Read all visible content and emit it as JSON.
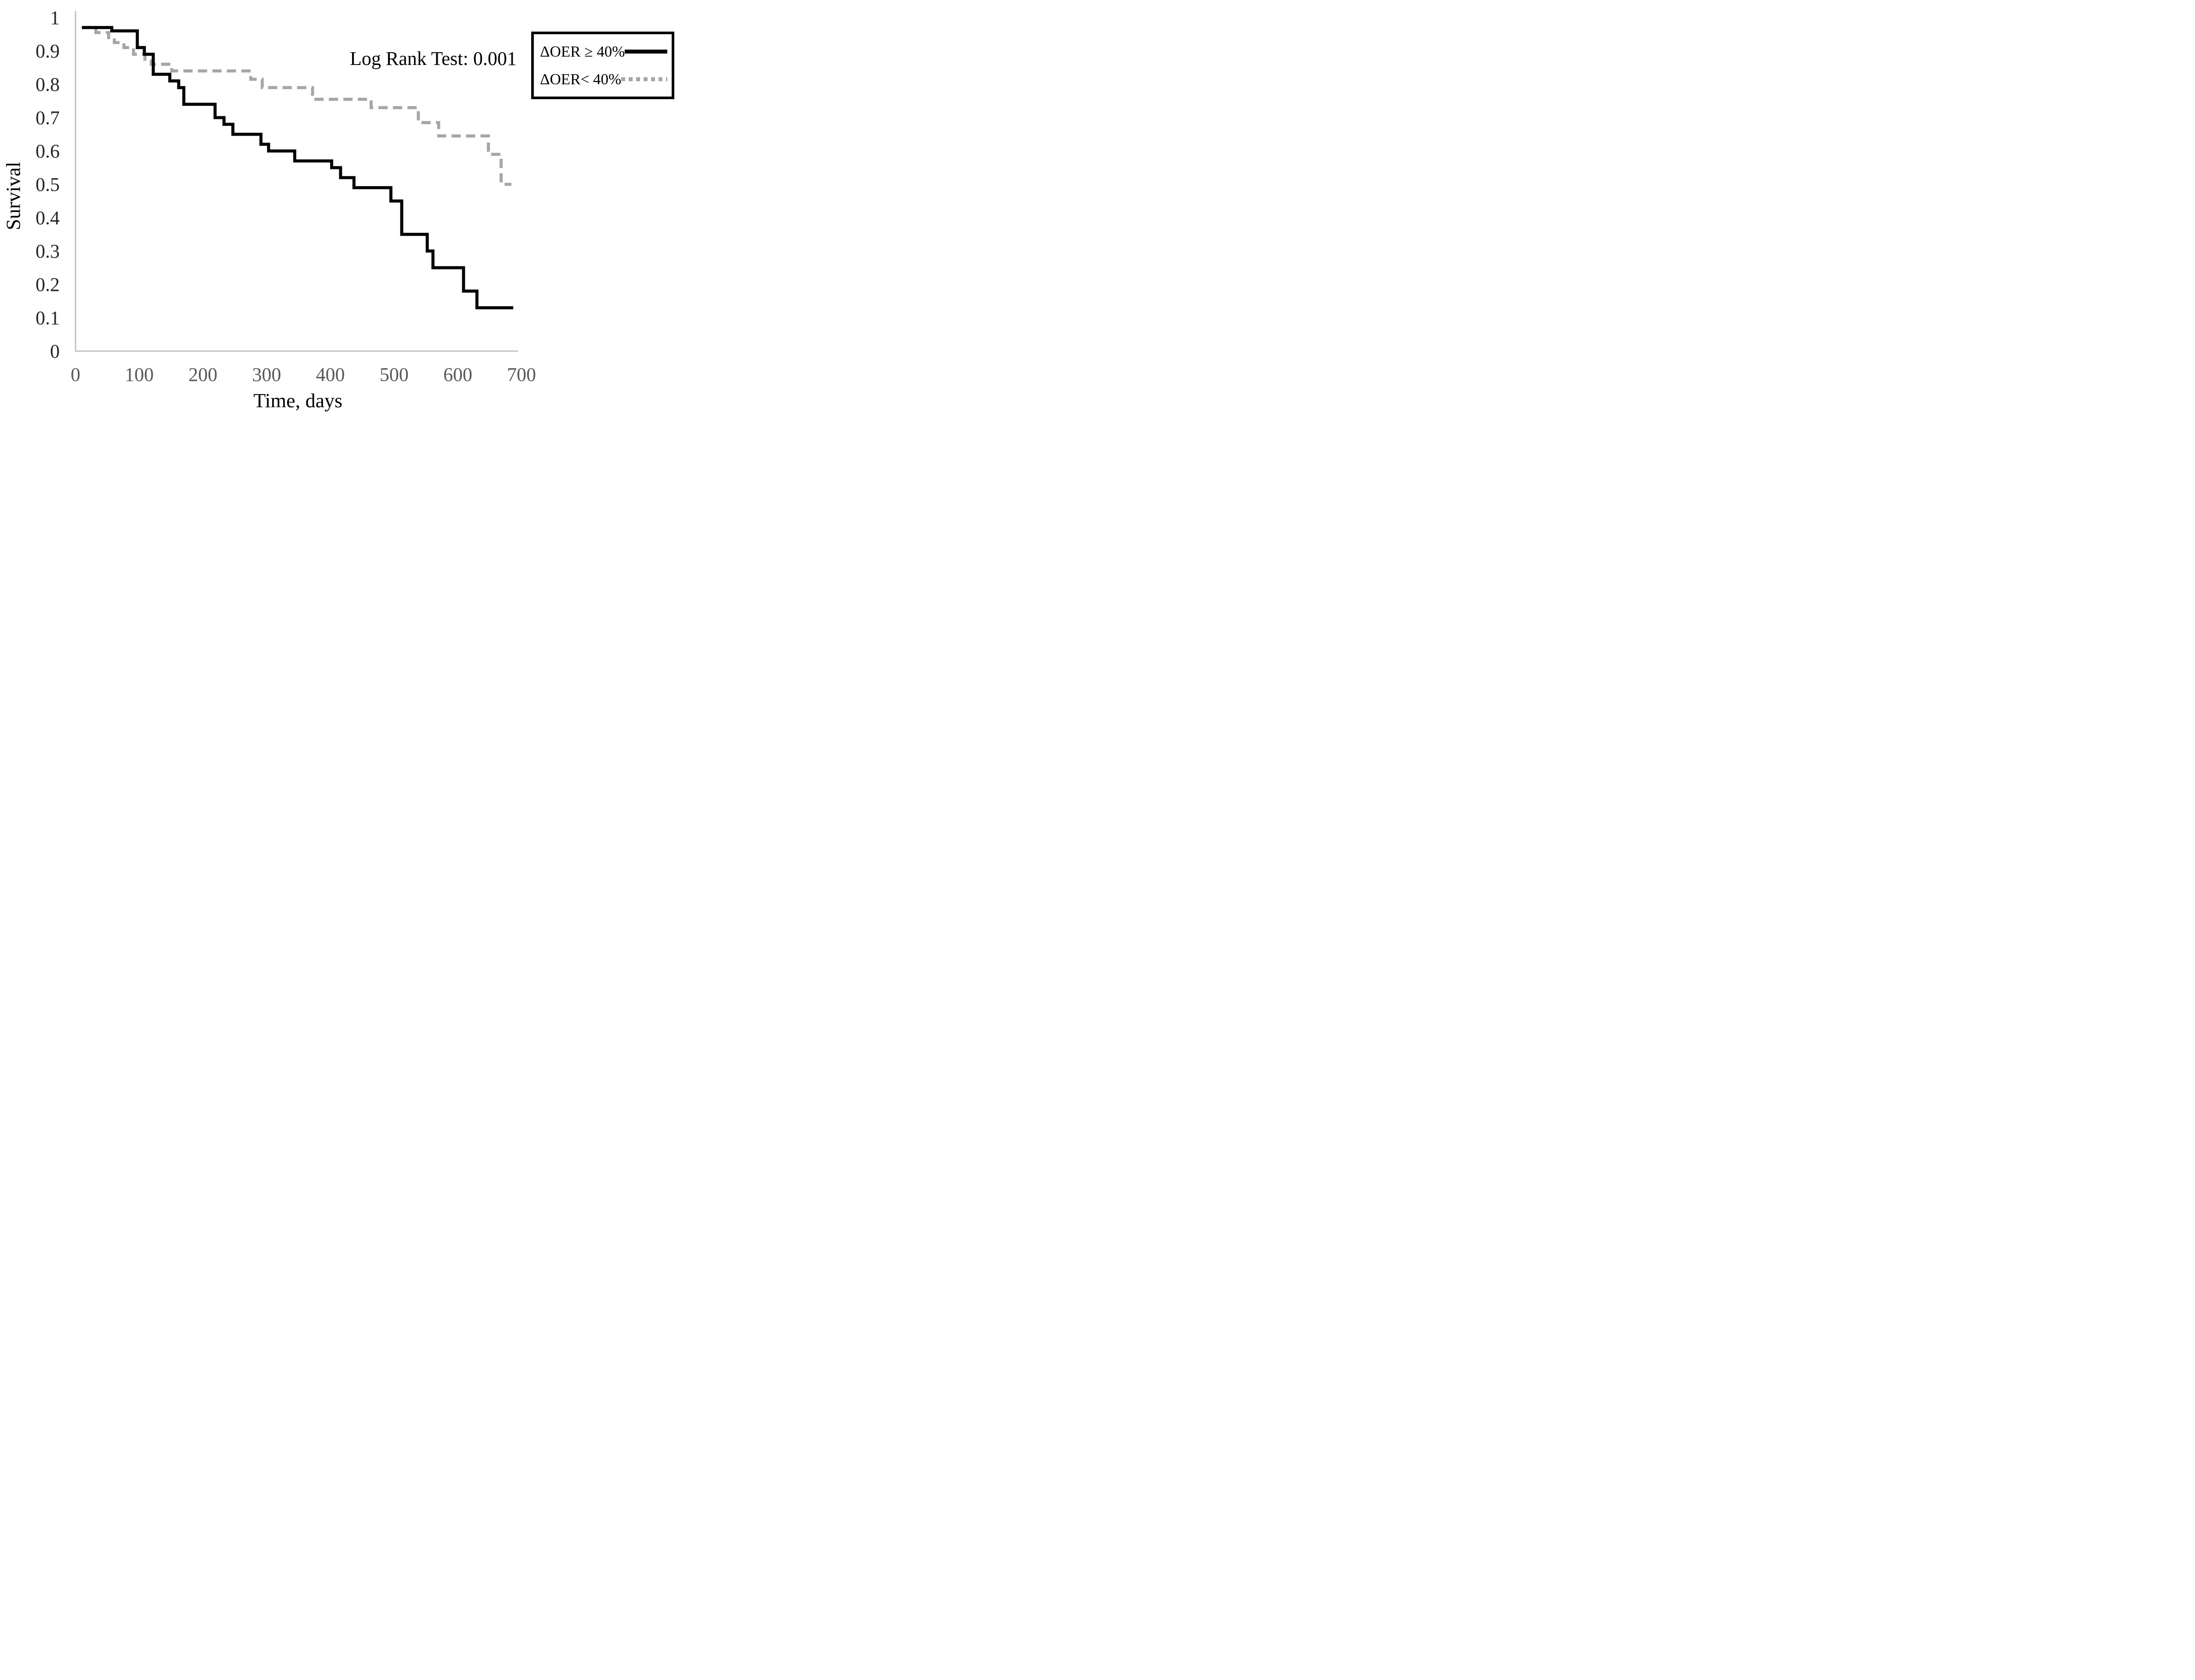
{
  "annotation": "Log Rank Test: 0.001",
  "axes": {
    "x_label": "Time, days",
    "y_label": "Survival",
    "x_tick_labels": [
      "0",
      "100",
      "200",
      "300",
      "400",
      "500",
      "600",
      "700"
    ],
    "x_tick_values": [
      0,
      100,
      200,
      300,
      400,
      500,
      600,
      700
    ],
    "y_tick_labels": [
      "1",
      "0.9",
      "0.8",
      "0.7",
      "0.6",
      "0.5",
      "0.4",
      "0.3",
      "0.2",
      "0.1",
      "0"
    ],
    "y_tick_values": [
      1,
      0.9,
      0.8,
      0.7,
      0.6,
      0.5,
      0.4,
      0.3,
      0.2,
      0.1,
      0
    ]
  },
  "legend": {
    "items": [
      {
        "label": "ΔOER ≥ 40%",
        "swatch": "solid"
      },
      {
        "label": "ΔOER< 40%",
        "swatch": "dashed"
      }
    ]
  },
  "colors": {
    "black_series": "#000000",
    "gray_series": "#a6a6a6",
    "axis_line": "#bfbfbf",
    "y_tick_text": "#262626",
    "x_tick_text": "#595959"
  },
  "chart_data": {
    "type": "line",
    "subtype": "kaplan-meier-step",
    "title": "",
    "xlabel": "Time, days",
    "ylabel": "Survival",
    "xlim": [
      0,
      700
    ],
    "ylim": [
      0,
      1
    ],
    "grid": false,
    "legend_position": "top-right",
    "annotation": "Log Rank Test: 0.001",
    "series": [
      {
        "name": "ΔOER ≥ 40%",
        "color": "#000000",
        "line_style": "solid",
        "points": [
          [
            10,
            0.97
          ],
          [
            57,
            0.96
          ],
          [
            97,
            0.91
          ],
          [
            108,
            0.89
          ],
          [
            122,
            0.83
          ],
          [
            148,
            0.81
          ],
          [
            162,
            0.79
          ],
          [
            170,
            0.74
          ],
          [
            219,
            0.7
          ],
          [
            233,
            0.68
          ],
          [
            247,
            0.65
          ],
          [
            291,
            0.62
          ],
          [
            303,
            0.6
          ],
          [
            344,
            0.57
          ],
          [
            402,
            0.55
          ],
          [
            416,
            0.52
          ],
          [
            437,
            0.49
          ],
          [
            495,
            0.45
          ],
          [
            512,
            0.35
          ],
          [
            552,
            0.3
          ],
          [
            561,
            0.25
          ],
          [
            609,
            0.18
          ],
          [
            630,
            0.13
          ]
        ],
        "end_time": 687
      },
      {
        "name": "ΔOER< 40%",
        "color": "#a6a6a6",
        "line_style": "dashed",
        "points": [
          [
            10,
            0.97
          ],
          [
            32,
            0.955
          ],
          [
            52,
            0.94
          ],
          [
            61,
            0.925
          ],
          [
            76,
            0.91
          ],
          [
            91,
            0.89
          ],
          [
            109,
            0.875
          ],
          [
            119,
            0.86
          ],
          [
            151,
            0.84
          ],
          [
            275,
            0.815
          ],
          [
            293,
            0.79
          ],
          [
            372,
            0.755
          ],
          [
            464,
            0.73
          ],
          [
            538,
            0.685
          ],
          [
            570,
            0.645
          ],
          [
            648,
            0.59
          ],
          [
            668,
            0.5
          ]
        ],
        "end_time": 684
      }
    ]
  }
}
